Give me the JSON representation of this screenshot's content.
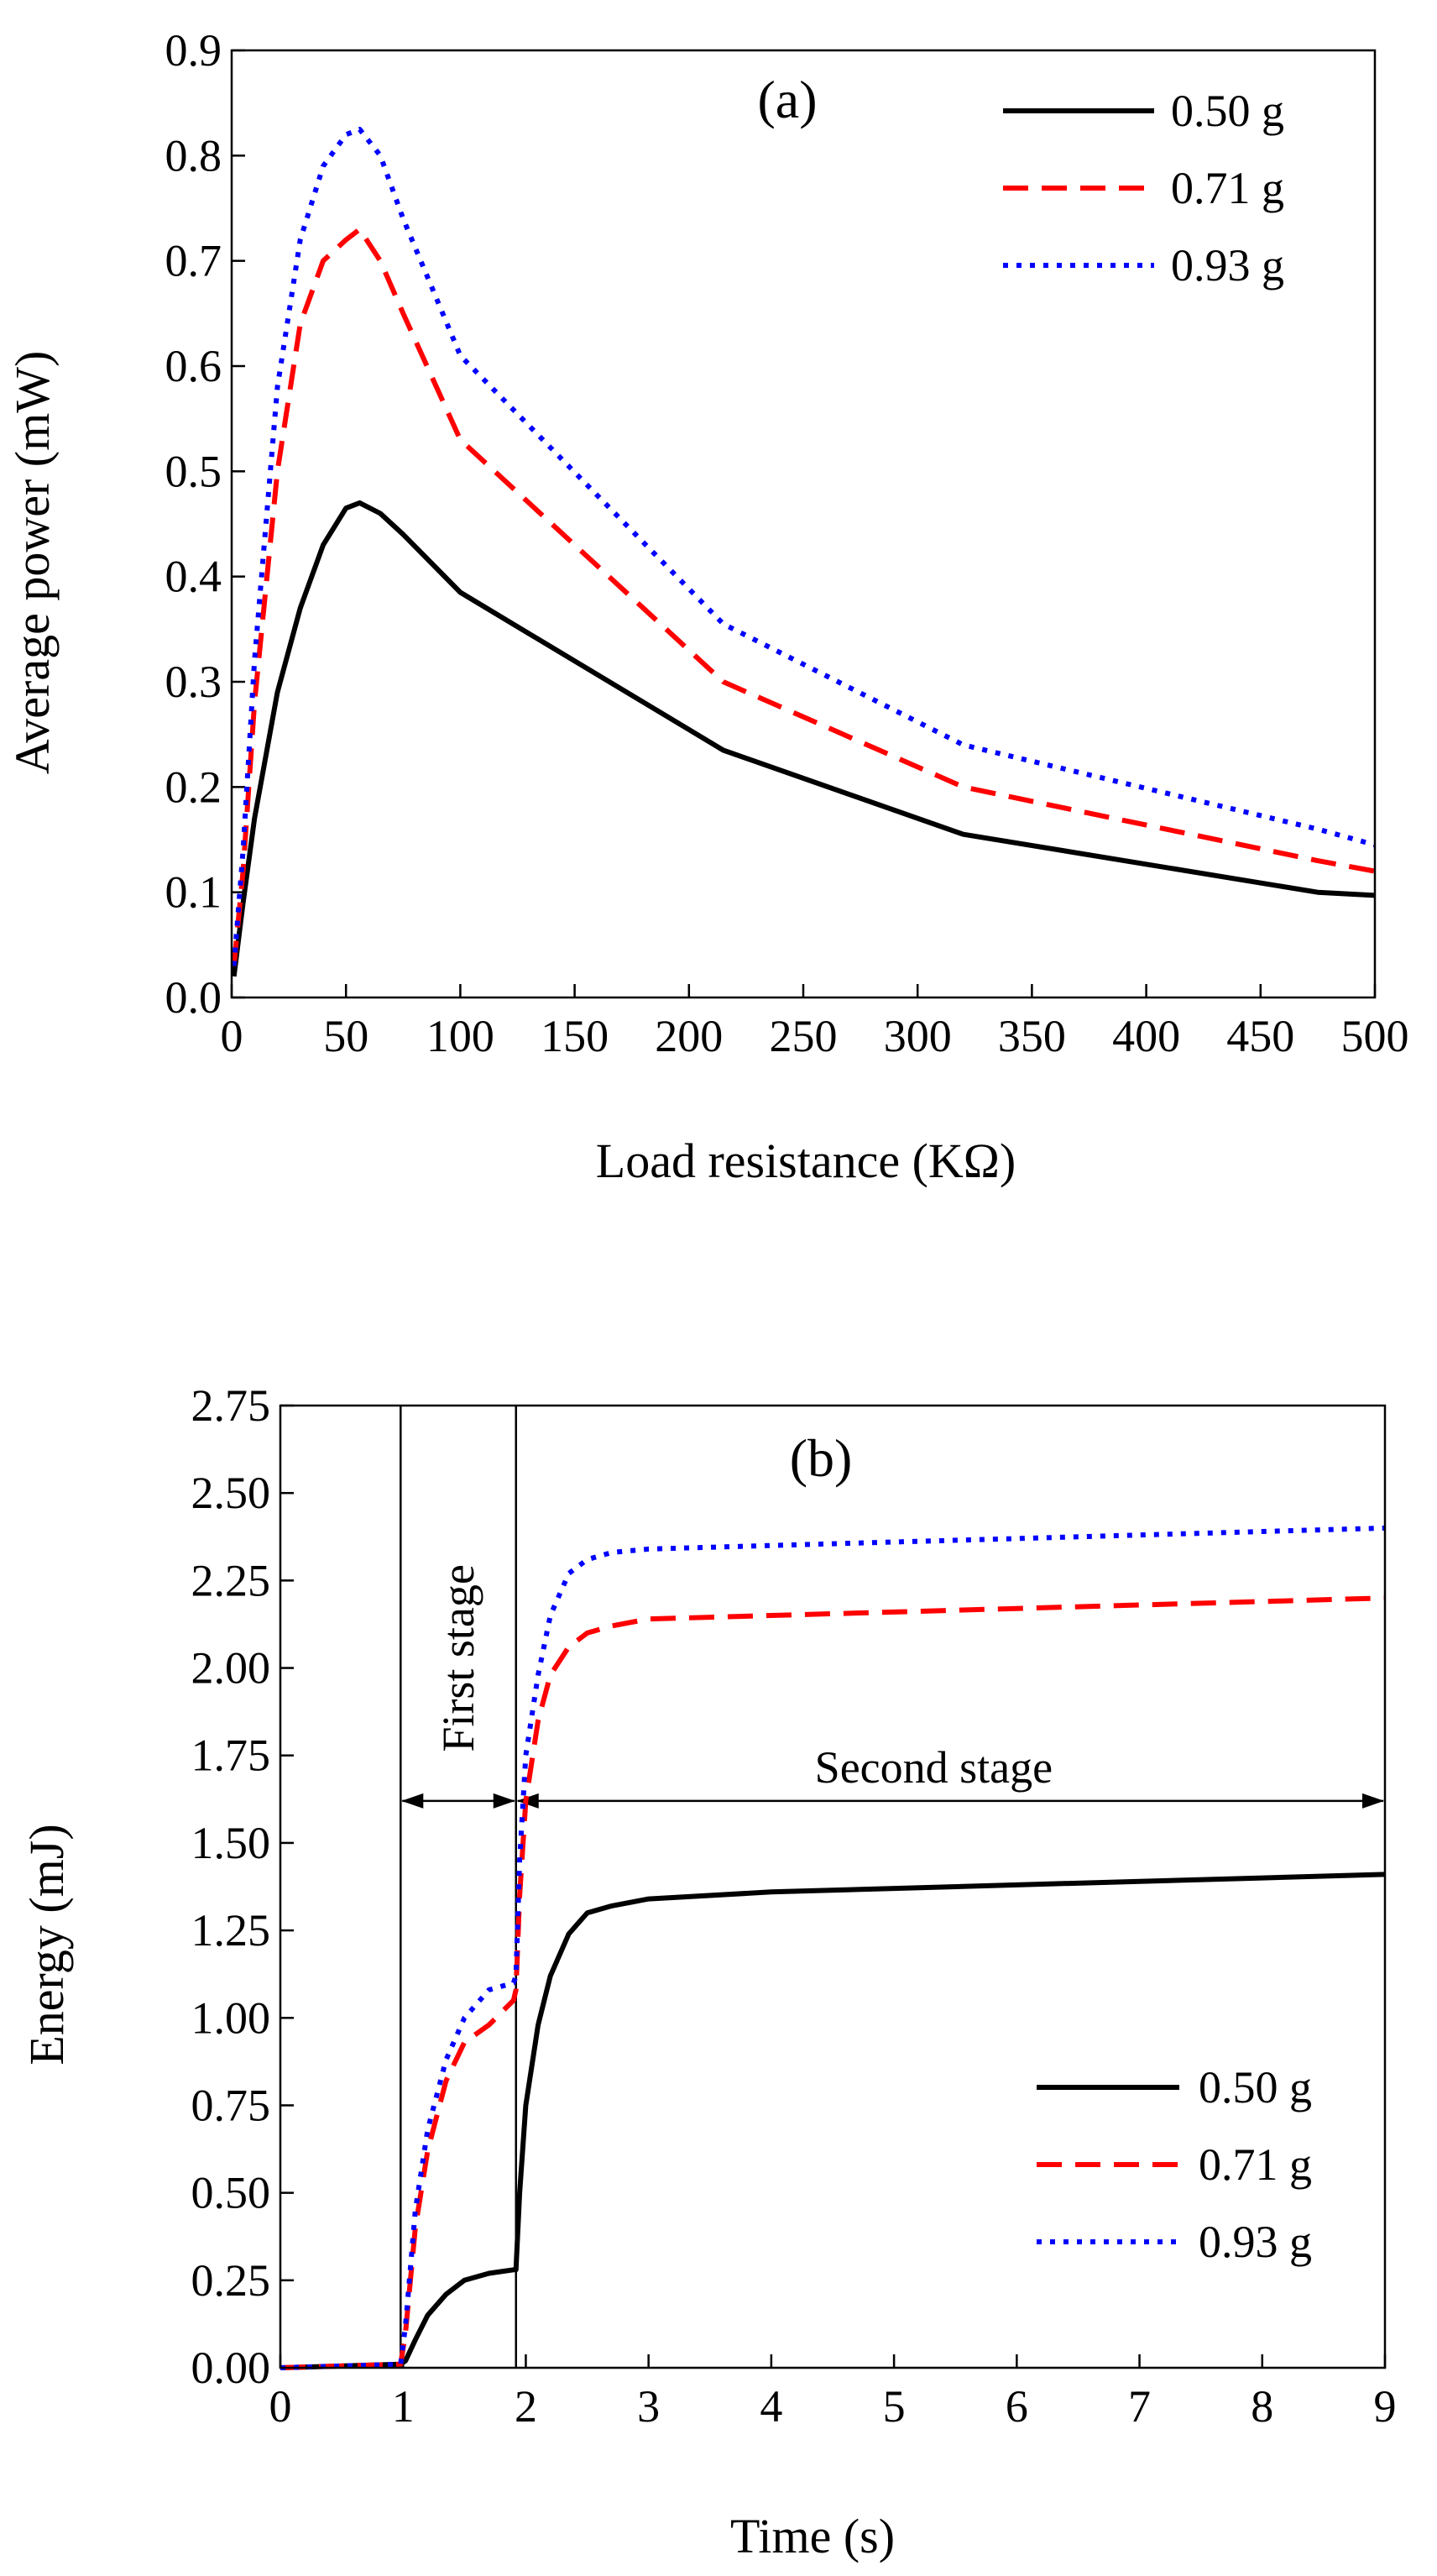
{
  "chart_data": [
    {
      "type": "line",
      "panel_label": "(a)",
      "xlabel": "Load resistance (KΩ)",
      "ylabel": "Average power (mW)",
      "xlim": [
        0,
        500
      ],
      "ylim": [
        0,
        0.9
      ],
      "xticks": [
        0,
        50,
        100,
        150,
        200,
        250,
        300,
        350,
        400,
        450,
        500
      ],
      "yticks": [
        0.0,
        0.1,
        0.2,
        0.3,
        0.4,
        0.5,
        0.6,
        0.7,
        0.8,
        0.9
      ],
      "xtick_labels": [
        "0",
        "50",
        "100",
        "150",
        "200",
        "250",
        "300",
        "350",
        "400",
        "450",
        "500"
      ],
      "ytick_labels": [
        "0.0",
        "0.1",
        "0.2",
        "0.3",
        "0.4",
        "0.5",
        "0.6",
        "0.7",
        "0.8",
        "0.9"
      ],
      "legend_position": "top-right",
      "series": [
        {
          "name": "0.50 g",
          "color": "#000000",
          "style": "solid",
          "x": [
            1,
            5,
            10,
            20,
            30,
            40,
            50,
            56,
            65,
            75,
            100,
            215,
            320,
            475,
            500
          ],
          "y": [
            0.02,
            0.09,
            0.17,
            0.29,
            0.37,
            0.43,
            0.465,
            0.47,
            0.46,
            0.44,
            0.385,
            0.235,
            0.155,
            0.1,
            0.097
          ]
        },
        {
          "name": "0.71 g",
          "color": "#ff0000",
          "style": "dashed",
          "x": [
            1,
            5,
            10,
            20,
            30,
            40,
            50,
            56,
            65,
            75,
            100,
            215,
            320,
            475,
            500
          ],
          "y": [
            0.03,
            0.12,
            0.28,
            0.5,
            0.64,
            0.7,
            0.72,
            0.73,
            0.7,
            0.65,
            0.53,
            0.3,
            0.2,
            0.13,
            0.12
          ]
        },
        {
          "name": "0.93 g",
          "color": "#0000ff",
          "style": "dotted",
          "x": [
            1,
            5,
            10,
            20,
            30,
            40,
            50,
            56,
            65,
            75,
            100,
            215,
            320,
            475,
            500
          ],
          "y": [
            0.03,
            0.14,
            0.32,
            0.58,
            0.72,
            0.79,
            0.82,
            0.825,
            0.8,
            0.74,
            0.61,
            0.355,
            0.24,
            0.16,
            0.145
          ]
        }
      ]
    },
    {
      "type": "line",
      "panel_label": "(b)",
      "xlabel": "Time (s)",
      "ylabel": "Energy (mJ)",
      "xlim": [
        0,
        9
      ],
      "ylim": [
        0,
        2.75
      ],
      "xticks": [
        0,
        1,
        2,
        3,
        4,
        5,
        6,
        7,
        8,
        9
      ],
      "yticks": [
        0,
        0.25,
        0.5,
        0.75,
        1.0,
        1.25,
        1.5,
        1.75,
        2.0,
        2.25,
        2.5,
        2.75
      ],
      "xtick_labels": [
        "0",
        "1",
        "2",
        "3",
        "4",
        "5",
        "6",
        "7",
        "8",
        "9"
      ],
      "ytick_labels": [
        "0.00",
        "0.25",
        "0.50",
        "0.75",
        "1.00",
        "1.25",
        "1.50",
        "1.75",
        "2.00",
        "2.25",
        "2.50",
        "2.75"
      ],
      "legend_position": "bottom-right",
      "annotations": {
        "stage_boundaries": [
          0.98,
          1.92
        ],
        "first_stage": {
          "text": "First stage",
          "from": 0.98,
          "to": 1.92,
          "arrow_y": 1.62
        },
        "second_stage": {
          "text": "Second stage",
          "from": 1.92,
          "to": 9,
          "arrow_y": 1.62
        }
      },
      "series": [
        {
          "name": "0.50 g",
          "color": "#000000",
          "style": "solid",
          "x": [
            0,
            0.98,
            1.02,
            1.1,
            1.2,
            1.35,
            1.5,
            1.7,
            1.9,
            1.92,
            1.95,
            2.0,
            2.1,
            2.2,
            2.35,
            2.5,
            2.7,
            3.0,
            4.0,
            5.0,
            6.0,
            7.0,
            8.0,
            9.0
          ],
          "y": [
            0.0,
            0.01,
            0.02,
            0.08,
            0.15,
            0.21,
            0.25,
            0.27,
            0.28,
            0.28,
            0.5,
            0.75,
            0.98,
            1.12,
            1.24,
            1.3,
            1.32,
            1.34,
            1.36,
            1.37,
            1.38,
            1.39,
            1.4,
            1.41
          ]
        },
        {
          "name": "0.71 g",
          "color": "#ff0000",
          "style": "dashed",
          "x": [
            0,
            0.98,
            1.02,
            1.1,
            1.2,
            1.35,
            1.5,
            1.7,
            1.9,
            1.92,
            1.95,
            2.0,
            2.1,
            2.2,
            2.35,
            2.5,
            2.7,
            3.0,
            4.0,
            5.0,
            6.0,
            7.0,
            8.0,
            9.0
          ],
          "y": [
            0.0,
            0.01,
            0.1,
            0.4,
            0.62,
            0.82,
            0.93,
            0.98,
            1.05,
            1.08,
            1.35,
            1.62,
            1.85,
            1.98,
            2.06,
            2.1,
            2.12,
            2.14,
            2.15,
            2.16,
            2.17,
            2.18,
            2.19,
            2.2
          ]
        },
        {
          "name": "0.93 g",
          "color": "#0000ff",
          "style": "dotted",
          "x": [
            0,
            0.98,
            1.02,
            1.1,
            1.2,
            1.35,
            1.5,
            1.7,
            1.9,
            1.92,
            1.95,
            2.0,
            2.1,
            2.2,
            2.35,
            2.5,
            2.7,
            3.0,
            4.0,
            5.0,
            6.0,
            7.0,
            8.0,
            9.0
          ],
          "y": [
            0.0,
            0.01,
            0.12,
            0.45,
            0.68,
            0.88,
            1.0,
            1.08,
            1.1,
            1.12,
            1.45,
            1.75,
            1.98,
            2.15,
            2.27,
            2.31,
            2.33,
            2.34,
            2.35,
            2.36,
            2.37,
            2.38,
            2.39,
            2.4
          ]
        }
      ]
    }
  ]
}
